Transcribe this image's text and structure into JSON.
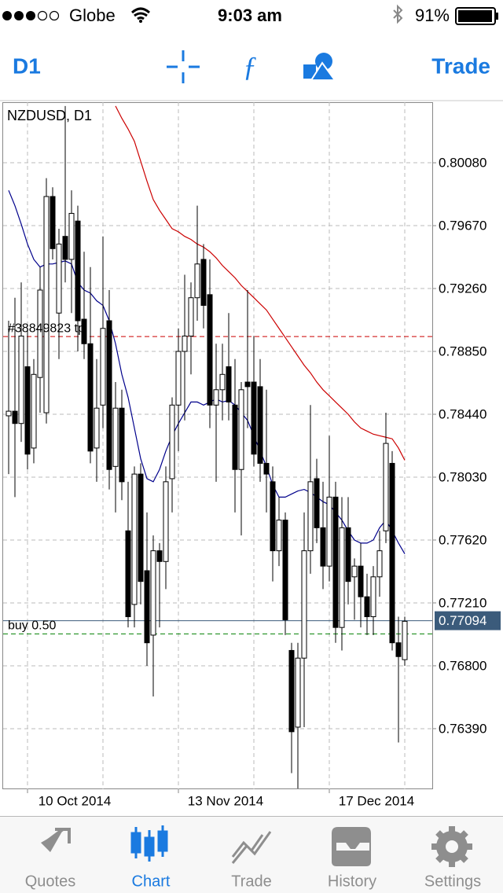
{
  "status_bar": {
    "carrier": "Globe",
    "time": "9:03 am",
    "battery": "91%"
  },
  "toolbar": {
    "timeframe": "D1",
    "trade": "Trade"
  },
  "chart_data": {
    "type": "candlestick",
    "title": "NZDUSD, D1",
    "categories": [
      null,
      null,
      null,
      "10 Oct 2014",
      null,
      null,
      null,
      null,
      null,
      null,
      null,
      null,
      null,
      null,
      null,
      null,
      null,
      null,
      null,
      null,
      null,
      null,
      null,
      null,
      null,
      null,
      null,
      "13 Nov 2014",
      null,
      null,
      null,
      null,
      null,
      null,
      null,
      null,
      null,
      null,
      null,
      null,
      null,
      null,
      null,
      null,
      null,
      null,
      null,
      null,
      null,
      null,
      null,
      "17 Dec 2014",
      null,
      null,
      null,
      null,
      null,
      null,
      null,
      null,
      null,
      null,
      null,
      null
    ],
    "candles": [
      [
        0.7843,
        0.7905,
        0.7805,
        0.7846
      ],
      [
        0.7846,
        0.792,
        0.779,
        0.7838
      ],
      [
        0.7838,
        0.793,
        0.7826,
        0.7895
      ],
      [
        0.7875,
        0.79,
        0.7808,
        0.7818
      ],
      [
        0.7822,
        0.788,
        0.7812,
        0.787
      ],
      [
        0.7868,
        0.794,
        0.7845,
        0.7925
      ],
      [
        0.7845,
        0.7998,
        0.7838,
        0.7986
      ],
      [
        0.7986,
        0.7992,
        0.7945,
        0.7952
      ],
      [
        0.791,
        0.7965,
        0.788,
        0.7955
      ],
      [
        0.796,
        0.8045,
        0.793,
        0.7945
      ],
      [
        0.7945,
        0.799,
        0.791,
        0.7975
      ],
      [
        0.797,
        0.798,
        0.7885,
        0.7905
      ],
      [
        0.7906,
        0.795,
        0.788,
        0.789
      ],
      [
        0.789,
        0.794,
        0.7812,
        0.782
      ],
      [
        0.7822,
        0.788,
        0.78,
        0.7848
      ],
      [
        0.785,
        0.796,
        0.7835,
        0.79
      ],
      [
        0.7905,
        0.7925,
        0.7795,
        0.7808
      ],
      [
        0.781,
        0.7865,
        0.778,
        0.7848
      ],
      [
        0.7848,
        0.786,
        0.7788,
        0.78
      ],
      [
        0.7768,
        0.78,
        0.7705,
        0.7712
      ],
      [
        0.772,
        0.781,
        0.7705,
        0.7805
      ],
      [
        0.7805,
        0.7812,
        0.772,
        0.7735
      ],
      [
        0.7742,
        0.778,
        0.768,
        0.7695
      ],
      [
        0.77,
        0.7765,
        0.766,
        0.7755
      ],
      [
        0.7755,
        0.776,
        0.7705,
        0.7748
      ],
      [
        0.7748,
        0.781,
        0.773,
        0.78
      ],
      [
        0.7802,
        0.7855,
        0.778,
        0.785
      ],
      [
        0.785,
        0.79,
        0.782,
        0.7885
      ],
      [
        0.7885,
        0.7935,
        0.784,
        0.7895
      ],
      [
        0.7895,
        0.793,
        0.787,
        0.792
      ],
      [
        0.792,
        0.798,
        0.7905,
        0.7942
      ],
      [
        0.7945,
        0.7955,
        0.79,
        0.7915
      ],
      [
        0.7922,
        0.7945,
        0.7835,
        0.785
      ],
      [
        0.785,
        0.789,
        0.78,
        0.786
      ],
      [
        0.786,
        0.789,
        0.784,
        0.787
      ],
      [
        0.7875,
        0.791,
        0.784,
        0.7852
      ],
      [
        0.785,
        0.788,
        0.778,
        0.7808
      ],
      [
        0.7808,
        0.7865,
        0.7765,
        0.786
      ],
      [
        0.7865,
        0.7925,
        0.7835,
        0.7862
      ],
      [
        0.7865,
        0.7895,
        0.781,
        0.7818
      ],
      [
        0.7862,
        0.788,
        0.78,
        0.7812
      ],
      [
        0.7812,
        0.786,
        0.778,
        0.7805
      ],
      [
        0.78,
        0.781,
        0.7735,
        0.7755
      ],
      [
        0.7755,
        0.779,
        0.7745,
        0.7775
      ],
      [
        0.7775,
        0.778,
        0.77,
        0.771
      ],
      [
        0.769,
        0.7695,
        0.761,
        0.7637
      ],
      [
        0.764,
        0.7695,
        0.76,
        0.7685
      ],
      [
        0.7685,
        0.778,
        0.764,
        0.7755
      ],
      [
        0.7755,
        0.785,
        0.774,
        0.78
      ],
      [
        0.7802,
        0.7815,
        0.776,
        0.777
      ],
      [
        0.777,
        0.78,
        0.773,
        0.7745
      ],
      [
        0.7745,
        0.783,
        0.7735,
        0.779
      ],
      [
        0.779,
        0.78,
        0.7695,
        0.7705
      ],
      [
        0.7705,
        0.779,
        0.769,
        0.777
      ],
      [
        0.777,
        0.779,
        0.772,
        0.7735
      ],
      [
        0.7738,
        0.775,
        0.771,
        0.7745
      ],
      [
        0.7745,
        0.776,
        0.7705,
        0.7725
      ],
      [
        0.7725,
        0.774,
        0.77,
        0.7712
      ],
      [
        0.7712,
        0.7745,
        0.77,
        0.7738
      ],
      [
        0.7738,
        0.7768,
        0.7725,
        0.7755
      ],
      [
        0.7768,
        0.7845,
        0.776,
        0.7825
      ],
      [
        0.7812,
        0.782,
        0.769,
        0.7695
      ],
      [
        0.7695,
        0.7712,
        0.763,
        0.7686
      ],
      [
        0.7684,
        0.7712,
        0.768,
        0.7709
      ]
    ],
    "series": [
      {
        "color": "#cc0000",
        "values": [
          null,
          null,
          null,
          null,
          null,
          null,
          null,
          null,
          null,
          null,
          null,
          null,
          null,
          null,
          null,
          null,
          null,
          0.8045,
          0.8037,
          0.803,
          0.8022,
          0.8009,
          0.7996,
          0.7984,
          0.7977,
          0.7971,
          0.7965,
          0.7963,
          0.796,
          0.7958,
          0.7955,
          0.7953,
          0.795,
          0.7946,
          0.7941,
          0.7937,
          0.7933,
          0.7928,
          0.7924,
          0.792,
          0.7916,
          0.7912,
          0.7906,
          0.79,
          0.7894,
          0.7888,
          0.7882,
          0.7876,
          0.7871,
          0.7865,
          0.786,
          0.7856,
          0.7852,
          0.7848,
          0.7844,
          0.7839,
          0.7835,
          0.7833,
          0.7831,
          0.783,
          0.7829,
          0.7828,
          0.7822,
          0.7814
        ]
      },
      {
        "color": "#00008b",
        "values": [
          0.799,
          0.798,
          0.7968,
          0.7955,
          0.7945,
          0.794,
          0.7942,
          0.7942,
          0.7943,
          0.7944,
          0.7942,
          0.793,
          0.7925,
          0.7923,
          0.7918,
          0.7915,
          0.7905,
          0.789,
          0.787,
          0.7855,
          0.7835,
          0.7815,
          0.7802,
          0.78,
          0.7808,
          0.782,
          0.783,
          0.7838,
          0.7845,
          0.7852,
          0.7852,
          0.785,
          0.7852,
          0.7854,
          0.7852,
          0.7853,
          0.785,
          0.7845,
          0.784,
          0.783,
          0.782,
          0.781,
          0.7798,
          0.779,
          0.779,
          0.7792,
          0.7794,
          0.7795,
          0.7793,
          0.779,
          0.7787,
          0.7785,
          0.778,
          0.7775,
          0.7768,
          0.7762,
          0.776,
          0.776,
          0.7762,
          0.777,
          0.7775,
          0.7768,
          0.776,
          0.7753
        ]
      }
    ],
    "ylim": [
      0.75995,
      0.80475
    ],
    "yticks": [
      {
        "value": 0.8008,
        "label": "0.80080"
      },
      {
        "value": 0.7967,
        "label": "0.79670"
      },
      {
        "value": 0.7926,
        "label": "0.79260"
      },
      {
        "value": 0.7885,
        "label": "0.78850"
      },
      {
        "value": 0.7844,
        "label": "0.78440"
      },
      {
        "value": 0.7803,
        "label": "0.78030"
      },
      {
        "value": 0.7762,
        "label": "0.77620"
      },
      {
        "value": 0.7721,
        "label": "0.77210"
      },
      {
        "value": 0.768,
        "label": "0.76800"
      },
      {
        "value": 0.7639,
        "label": "0.76390"
      }
    ],
    "grid": true,
    "price_lines": [
      {
        "label": "#38849823 tp",
        "value": 0.78947,
        "color": "#cc0000",
        "dashed": true
      },
      {
        "label": "buy 0.50",
        "value": 0.77008,
        "color": "#008000",
        "dashed": true
      }
    ],
    "current_price": 0.77094,
    "current_price_color": "#3b5b7b"
  },
  "tab_bar": {
    "tabs": [
      "Quotes",
      "Chart",
      "Trade",
      "History",
      "Settings"
    ],
    "active": 1
  }
}
